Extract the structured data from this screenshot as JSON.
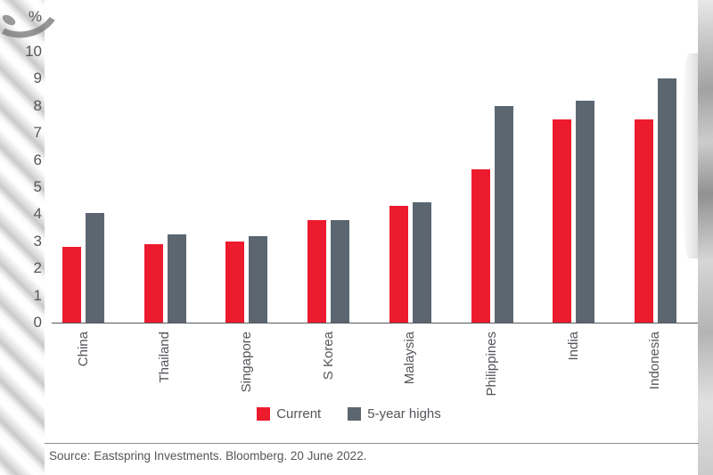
{
  "page": {
    "type": "chart-slide",
    "background": "#ffffff"
  },
  "chart_data": {
    "type": "bar",
    "title": "",
    "unit_label": "%",
    "categories": [
      "China",
      "Thailand",
      "Singapore",
      "S Korea",
      "Malaysia",
      "Philippines",
      "India",
      "Indonesia"
    ],
    "series": [
      {
        "name": "Current",
        "color": "#ed1b2e",
        "values": [
          2.8,
          2.9,
          3.0,
          3.8,
          4.3,
          5.65,
          7.5,
          7.5
        ]
      },
      {
        "name": "5-year highs",
        "color": "#5b6670",
        "values": [
          4.05,
          3.25,
          3.2,
          3.8,
          4.45,
          8.0,
          8.2,
          9.0
        ]
      }
    ],
    "y_axis": {
      "min": 0,
      "max": 10,
      "step": 1,
      "ticks": [
        10,
        9,
        8,
        7,
        6,
        5,
        4,
        3,
        2,
        1,
        0
      ]
    },
    "x_label_rotation": -90,
    "legend_position": "bottom",
    "grid": false
  },
  "footer": {
    "source_text": "Source: Eastspring Investments. Bloomberg. 20 June 2022."
  },
  "colors": {
    "text": "#54565b",
    "axis": "#54565b",
    "divider": "#8e9093"
  }
}
